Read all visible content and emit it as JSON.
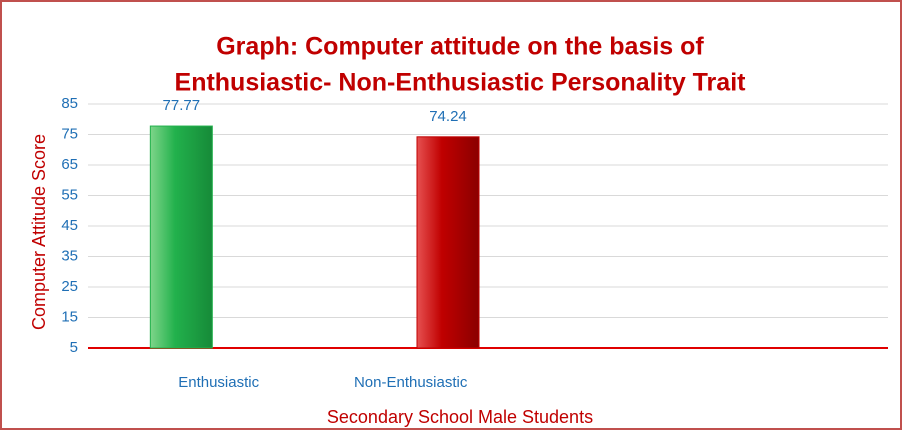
{
  "chart_data": {
    "type": "bar",
    "title": [
      "Graph: Computer attitude on the basis of",
      "Enthusiastic- Non-Enthusiastic Personality Trait"
    ],
    "ylabel": "Computer Attitude Score",
    "xlabel": "Secondary School Male Students",
    "categories": [
      "Enthusiastic",
      "Non-Enthusiastic",
      null
    ],
    "series": [
      {
        "name": null,
        "colors": [
          "#22b14c",
          "#c00000"
        ],
        "values": [
          77.77,
          74.24,
          null
        ]
      }
    ],
    "ylim": [
      5,
      85
    ],
    "yticks": [
      5,
      15,
      25,
      35,
      45,
      55,
      65,
      75,
      85
    ],
    "grid": true
  }
}
